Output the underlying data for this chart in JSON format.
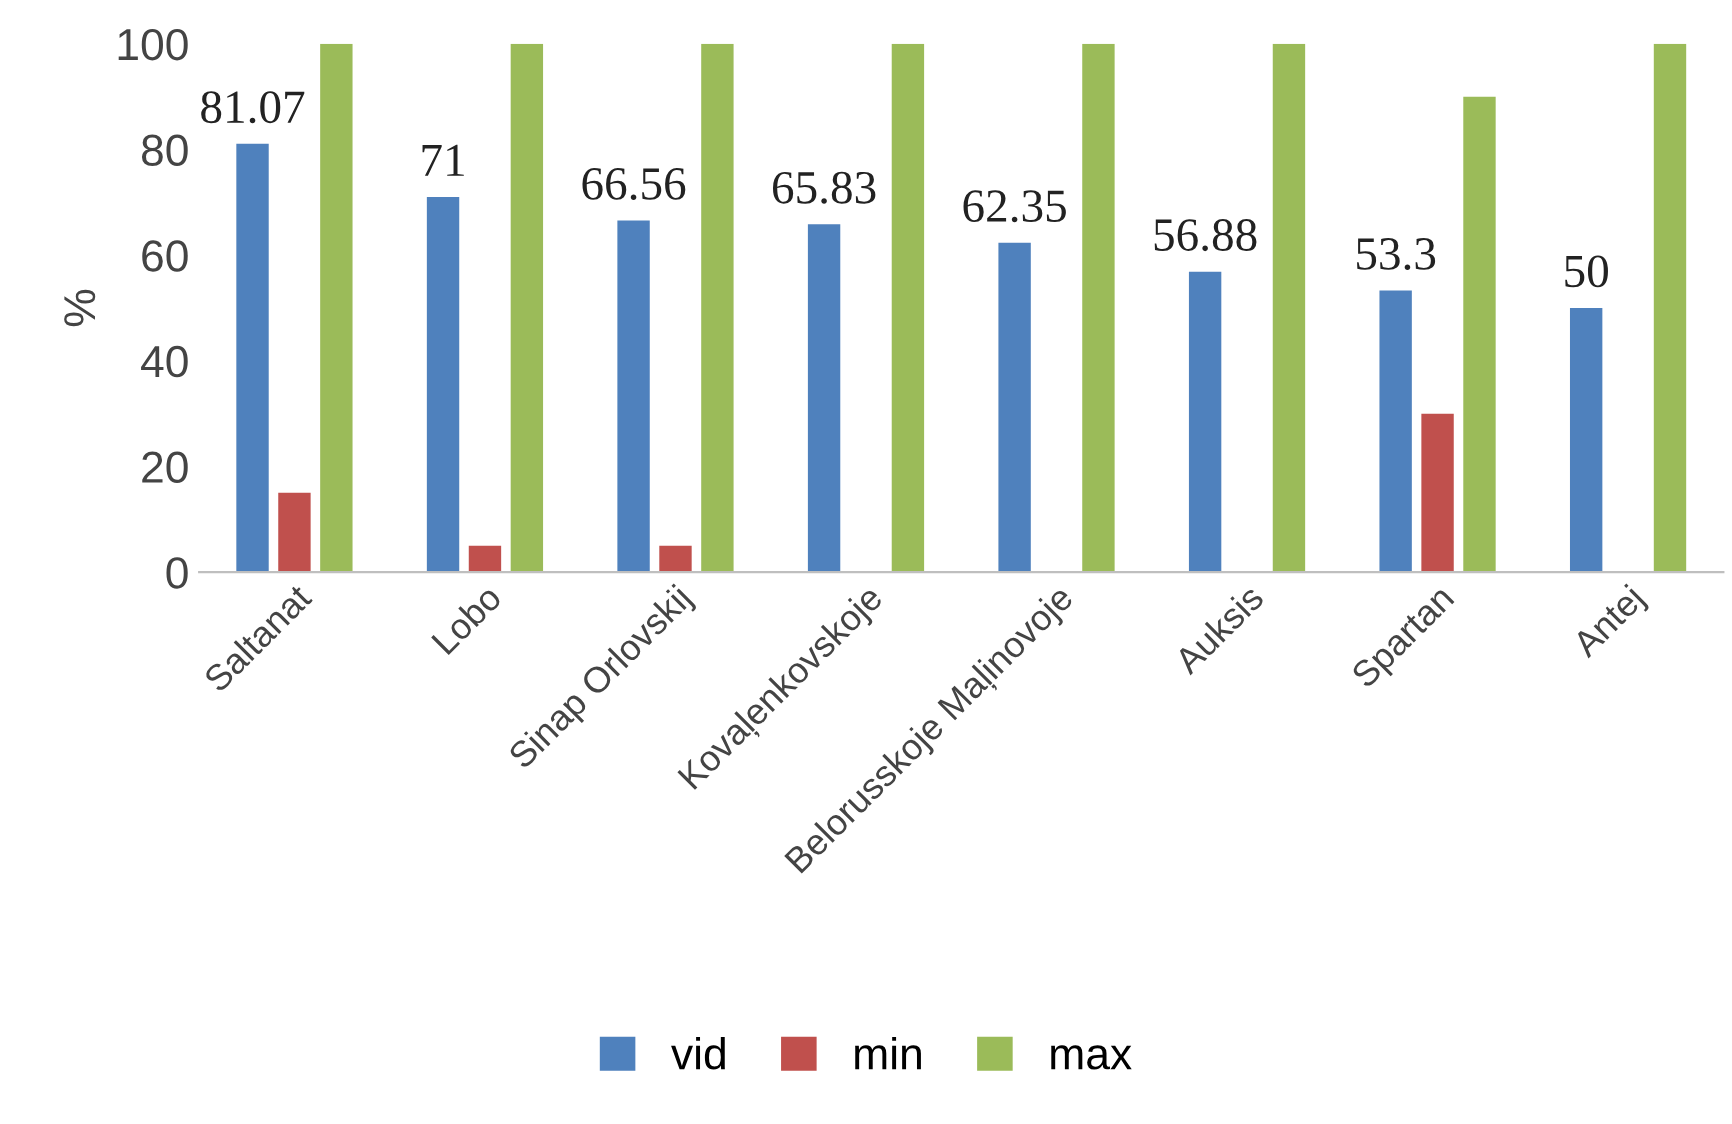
{
  "chart_data": {
    "type": "bar",
    "ylabel": "%",
    "categories": [
      "Saltanat",
      "Lobo",
      "Sinap Orlovskij",
      "Kovaļenkovskoje",
      "Belorusskoje Maļinovoje",
      "Auksis",
      "Spartan",
      "Antej"
    ],
    "series": [
      {
        "name": "vid",
        "color": "#4f81bd",
        "values": [
          81.07,
          71,
          66.56,
          65.83,
          62.35,
          56.88,
          53.3,
          50
        ],
        "value_labels": [
          "81.07",
          "71",
          "66.56",
          "65.83",
          "62.35",
          "56.88",
          "53.3",
          "50"
        ]
      },
      {
        "name": "min",
        "color": "#c0504d",
        "values": [
          15,
          5,
          5,
          0,
          0,
          0,
          30,
          0
        ]
      },
      {
        "name": "max",
        "color": "#9bbb59",
        "values": [
          100,
          100,
          100,
          100,
          100,
          100,
          90,
          100
        ]
      }
    ],
    "ylim": [
      0,
      100
    ],
    "yticks": [
      0,
      20,
      40,
      60,
      80,
      100
    ],
    "grid": false,
    "legend": "bottom"
  }
}
